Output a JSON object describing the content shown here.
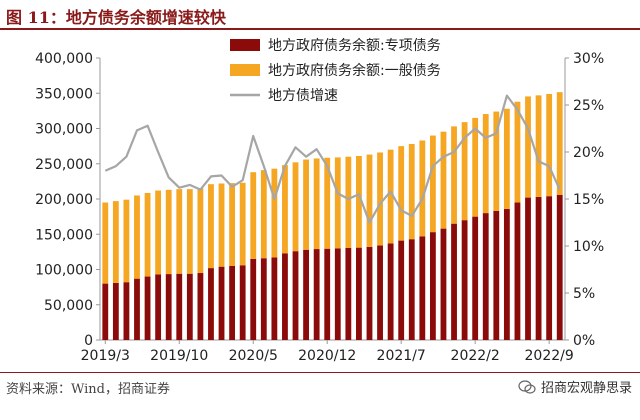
{
  "header": {
    "title": "图 11：地方债务余额增速较快"
  },
  "footer": {
    "source": "资料来源：Wind，招商证券",
    "watermark": "招商宏观静思录"
  },
  "colors": {
    "special": "#8b0a0a",
    "general": "#f5a623",
    "growth": "#a6a6a6",
    "title": "#8a1a1a"
  },
  "chart_data": {
    "type": "bar",
    "stacked": true,
    "x": [
      "2019/3",
      "2019/4",
      "2019/5",
      "2019/6",
      "2019/7",
      "2019/8",
      "2019/9",
      "2019/10",
      "2019/11",
      "2019/12",
      "2020/1",
      "2020/2",
      "2020/3",
      "2020/4",
      "2020/5",
      "2020/6",
      "2020/7",
      "2020/8",
      "2020/9",
      "2020/10",
      "2020/11",
      "2020/12",
      "2021/1",
      "2021/2",
      "2021/3",
      "2021/4",
      "2021/5",
      "2021/6",
      "2021/7",
      "2021/8",
      "2021/9",
      "2021/10",
      "2021/11",
      "2021/12",
      "2022/1",
      "2022/2",
      "2022/3",
      "2022/4",
      "2022/5",
      "2022/6",
      "2022/7",
      "2022/8",
      "2022/9",
      "2022/10"
    ],
    "x_tick_labels": [
      "2019/3",
      "2019/10",
      "2020/5",
      "2020/12",
      "2021/7",
      "2022/2",
      "2022/9"
    ],
    "series": [
      {
        "name": "地方政府债务余额:专项债务",
        "axis": "left",
        "values": [
          80000,
          81000,
          82000,
          87000,
          90000,
          93000,
          93500,
          94000,
          94000,
          95000,
          102000,
          104000,
          105000,
          106000,
          115000,
          116000,
          117000,
          123000,
          126000,
          128000,
          129000,
          129500,
          130000,
          130500,
          131000,
          132000,
          134000,
          137000,
          141000,
          143000,
          147000,
          153000,
          158000,
          165000,
          170000,
          175000,
          180000,
          183000,
          186000,
          195000,
          202000,
          203000,
          204000,
          206000
        ]
      },
      {
        "name": "地方政府债务余额:一般债务",
        "axis": "left",
        "values": [
          115000,
          116000,
          117000,
          118000,
          118500,
          119000,
          119500,
          120000,
          120000,
          120500,
          119000,
          118000,
          117500,
          117000,
          123000,
          125000,
          126000,
          125000,
          126000,
          128000,
          128500,
          129000,
          129000,
          129500,
          130000,
          131000,
          132000,
          133000,
          134000,
          135000,
          136000,
          137000,
          137500,
          138000,
          139000,
          140000,
          140500,
          141000,
          142000,
          143000,
          143500,
          144000,
          145000,
          145500
        ]
      },
      {
        "name": "地方债增速",
        "type": "line",
        "axis": "right",
        "values": [
          18.0,
          18.5,
          19.5,
          22.3,
          22.8,
          20.0,
          17.3,
          16.2,
          16.5,
          16.0,
          17.4,
          17.5,
          16.3,
          17.0,
          21.7,
          18.5,
          15.0,
          18.5,
          20.5,
          19.5,
          20.3,
          18.5,
          15.6,
          15.0,
          15.5,
          12.5,
          14.5,
          15.8,
          13.8,
          13.2,
          15.0,
          18.5,
          19.5,
          20.0,
          21.5,
          22.5,
          21.5,
          22.0,
          26.0,
          24.5,
          22.5,
          19.0,
          18.5,
          16.0
        ]
      }
    ],
    "ylim_left": [
      0,
      400000
    ],
    "yticks_left": [
      "0",
      "50,000",
      "100,000",
      "150,000",
      "200,000",
      "250,000",
      "300,000",
      "350,000",
      "400,000"
    ],
    "ylim_right": [
      0,
      30
    ],
    "yticks_right": [
      "0%",
      "5%",
      "10%",
      "15%",
      "20%",
      "25%",
      "30%"
    ],
    "legend_position": "top-center",
    "grid": false
  }
}
